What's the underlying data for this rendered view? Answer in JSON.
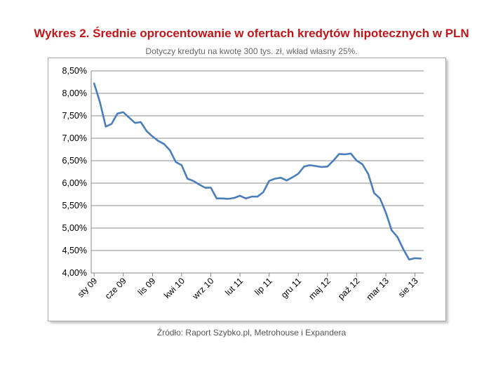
{
  "header": {
    "title": "Wykres 2. Średnie oprocentowanie w ofertach kredytów hipotecznych w PLN",
    "subtitle": "Dotyczy kredytu na kwotę 300 tys. zł, wkład własny 25%."
  },
  "footer": {
    "source": "Źródło: Raport Szybko.pl, Metrohouse i Expandera"
  },
  "chart_data": {
    "type": "line",
    "title": "Wykres 2. Średnie oprocentowanie w ofertach kredytów hipotecznych w PLN",
    "subtitle": "Dotyczy kredytu na kwotę 300 tys. zł, wkład własny 25%.",
    "xlabel": "",
    "ylabel": "",
    "ylim": [
      4.0,
      8.5
    ],
    "grid": true,
    "legend": "none",
    "line_color": "#4a7ebb",
    "ytick_values": [
      4.0,
      4.5,
      5.0,
      5.5,
      6.0,
      6.5,
      7.0,
      7.5,
      8.0,
      8.5
    ],
    "ytick_labels": [
      "4,00%",
      "4,50%",
      "5,00%",
      "5,50%",
      "6,00%",
      "6,50%",
      "7,00%",
      "7,50%",
      "8,00%",
      "8,50%"
    ],
    "xtick_labels": [
      "sty 09",
      "cze 09",
      "lis 09",
      "kwi 10",
      "wrz 10",
      "lut 11",
      "lip 11",
      "gru 11",
      "maj 12",
      "paź 12",
      "mar 13",
      "sie 13"
    ],
    "xtick_index": [
      0,
      5,
      10,
      15,
      20,
      25,
      30,
      35,
      40,
      45,
      50,
      55
    ],
    "series": [
      {
        "values": [
          8.22,
          7.8,
          7.26,
          7.32,
          7.55,
          7.58,
          7.46,
          7.34,
          7.36,
          7.16,
          7.04,
          6.94,
          6.87,
          6.73,
          6.47,
          6.4,
          6.1,
          6.05,
          5.97,
          5.9,
          5.9,
          5.66,
          5.66,
          5.65,
          5.67,
          5.72,
          5.66,
          5.7,
          5.7,
          5.8,
          6.05,
          6.1,
          6.12,
          6.06,
          6.13,
          6.21,
          6.37,
          6.4,
          6.38,
          6.36,
          6.37,
          6.5,
          6.65,
          6.64,
          6.66,
          6.5,
          6.42,
          6.2,
          5.78,
          5.66,
          5.35,
          4.95,
          4.8,
          4.53,
          4.3,
          4.33,
          4.32
        ]
      }
    ]
  }
}
